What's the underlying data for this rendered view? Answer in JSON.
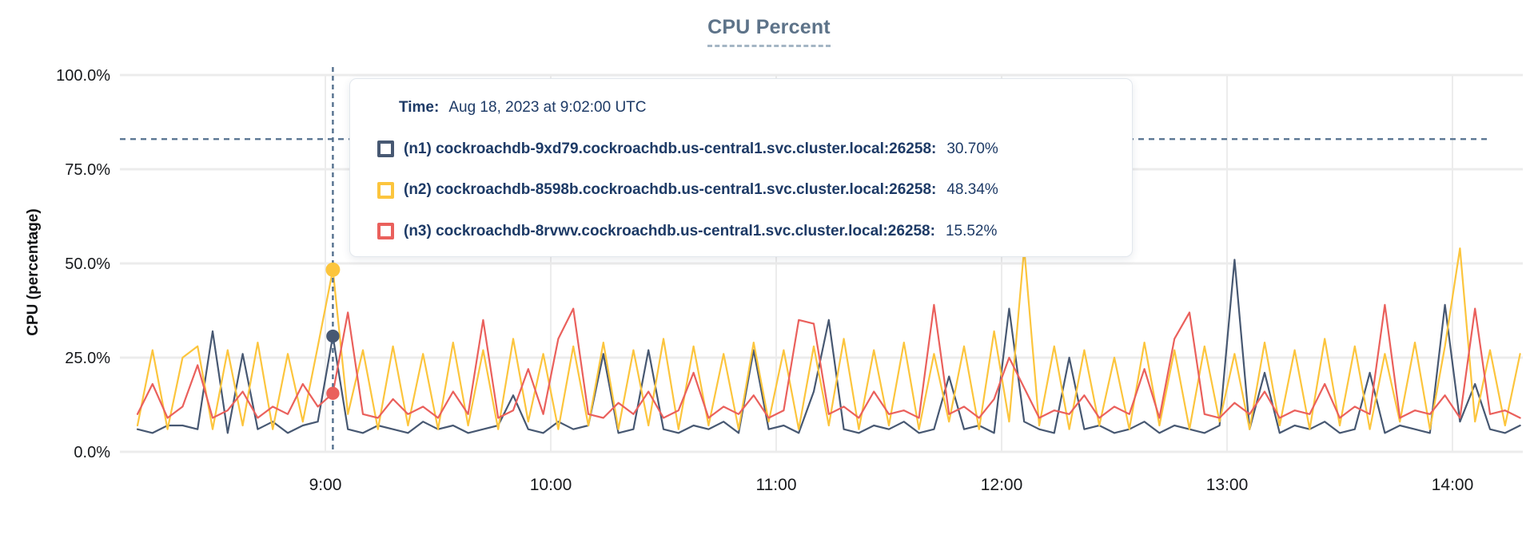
{
  "title": "CPU Percent",
  "tooltip": {
    "time_label": "Time:",
    "time_value": "Aug 18, 2023 at 9:02:00 UTC",
    "series": [
      {
        "id": "n1",
        "name": "(n1) cockroachdb-9xd79.cockroachdb.us-central1.svc.cluster.local:26258:",
        "value": "30.70%",
        "color": "#475872"
      },
      {
        "id": "n2",
        "name": "(n2) cockroachdb-8598b.cockroachdb.us-central1.svc.cluster.local:26258:",
        "value": "48.34%",
        "color": "#FCC53D"
      },
      {
        "id": "n3",
        "name": "(n3) cockroachdb-8rvwv.cockroachdb.us-central1.svc.cluster.local:26258:",
        "value": "15.52%",
        "color": "#EA605C"
      }
    ]
  },
  "chart_data": {
    "type": "line",
    "title": "CPU Percent",
    "xlabel": "",
    "ylabel": "CPU (percentage)",
    "ylim": [
      0,
      100
    ],
    "grid": true,
    "legend_position": "hover-tooltip-overlay",
    "y_ticks": [
      {
        "value": 0,
        "label": "0.0%"
      },
      {
        "value": 25,
        "label": "25.0%"
      },
      {
        "value": 50,
        "label": "50.0%"
      },
      {
        "value": 75,
        "label": "75.0%"
      },
      {
        "value": 100,
        "label": "100.0%"
      }
    ],
    "x_ticks": [
      {
        "minutes": 540,
        "label": "9:00"
      },
      {
        "minutes": 600,
        "label": "10:00"
      },
      {
        "minutes": 660,
        "label": "11:00"
      },
      {
        "minutes": 720,
        "label": "12:00"
      },
      {
        "minutes": 780,
        "label": "13:00"
      },
      {
        "minutes": 840,
        "label": "14:00"
      }
    ],
    "x_start_minutes": 490,
    "x_step_minutes": 4,
    "threshold_percent": 83,
    "crosshair": {
      "minutes": 542,
      "time_label": "Aug 18, 2023 at 9:02:00 UTC",
      "points": [
        {
          "series": "n1",
          "value": 30.7
        },
        {
          "series": "n2",
          "value": 48.34
        },
        {
          "series": "n3",
          "value": 15.52
        }
      ]
    },
    "series": [
      {
        "id": "n1",
        "name": "(n1) cockroachdb-9xd79.cockroachdb.us-central1.svc.cluster.local:26258",
        "color": "#475872",
        "values": [
          6,
          5,
          7,
          7,
          6,
          32,
          5,
          26,
          6,
          8,
          5,
          7,
          8,
          30.7,
          6,
          5,
          7,
          6,
          5,
          8,
          6,
          7,
          5,
          6,
          7,
          15,
          6,
          5,
          8,
          6,
          7,
          26,
          5,
          6,
          27,
          6,
          5,
          7,
          6,
          8,
          5,
          27,
          6,
          7,
          5,
          16,
          35,
          6,
          5,
          7,
          6,
          8,
          5,
          6,
          20,
          6,
          7,
          5,
          38,
          8,
          6,
          5,
          25,
          6,
          7,
          5,
          6,
          8,
          5,
          7,
          6,
          5,
          7,
          51,
          6,
          21,
          5,
          7,
          6,
          8,
          5,
          6,
          21,
          5,
          7,
          6,
          5,
          39,
          8,
          18,
          6,
          5,
          7
        ]
      },
      {
        "id": "n2",
        "name": "(n2) cockroachdb-8598b.cockroachdb.us-central1.svc.cluster.local:26258",
        "color": "#FCC53D",
        "values": [
          7,
          27,
          6,
          25,
          28,
          6,
          27,
          7,
          29,
          6,
          26,
          8,
          28,
          48.34,
          10,
          27,
          6,
          28,
          7,
          26,
          6,
          29,
          7,
          27,
          6,
          30,
          8,
          26,
          6,
          28,
          7,
          29,
          6,
          27,
          7,
          30,
          6,
          28,
          7,
          26,
          6,
          29,
          8,
          27,
          6,
          28,
          7,
          30,
          6,
          27,
          7,
          29,
          6,
          26,
          8,
          28,
          6,
          32,
          8,
          54,
          7,
          28,
          6,
          27,
          7,
          25,
          6,
          29,
          7,
          27,
          6,
          28,
          8,
          26,
          6,
          29,
          7,
          27,
          6,
          30,
          7,
          28,
          6,
          26,
          8,
          29,
          6,
          28,
          54,
          8,
          27,
          7,
          26
        ]
      },
      {
        "id": "n3",
        "name": "(n3) cockroachdb-8rvwv.cockroachdb.us-central1.svc.cluster.local:26258",
        "color": "#EA605C",
        "values": [
          10,
          18,
          9,
          12,
          23,
          9,
          11,
          16,
          9,
          12,
          10,
          18,
          12,
          15.52,
          37,
          10,
          9,
          14,
          10,
          12,
          9,
          16,
          10,
          35,
          9,
          11,
          22,
          10,
          30,
          38,
          10,
          9,
          13,
          10,
          16,
          9,
          11,
          21,
          9,
          12,
          10,
          15,
          9,
          11,
          35,
          34,
          10,
          12,
          9,
          16,
          10,
          11,
          9,
          39,
          10,
          12,
          9,
          14,
          25,
          17,
          9,
          11,
          10,
          15,
          9,
          12,
          10,
          22,
          9,
          30,
          37,
          10,
          9,
          13,
          10,
          16,
          9,
          11,
          10,
          18,
          9,
          12,
          10,
          39,
          9,
          11,
          10,
          15,
          9,
          38,
          10,
          11,
          9
        ]
      }
    ]
  },
  "colors": {
    "title": "#5d7389",
    "title_underline": "#a4b5c4",
    "gridline": "#ececec",
    "axis_text": "#17191c",
    "tooltip_text": "#1d3a66",
    "tooltip_border": "#e2e7ed",
    "dashed_guides": "#54708e",
    "background": "#ffffff"
  }
}
